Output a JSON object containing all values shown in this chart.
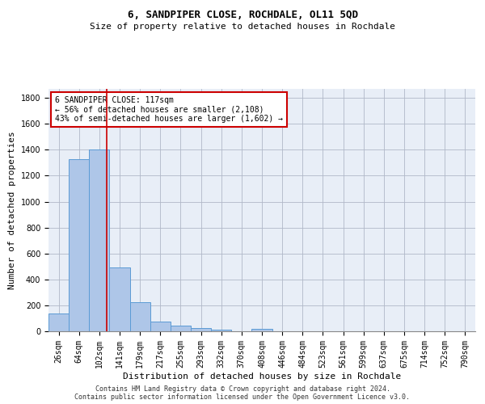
{
  "title": "6, SANDPIPER CLOSE, ROCHDALE, OL11 5QD",
  "subtitle": "Size of property relative to detached houses in Rochdale",
  "xlabel": "Distribution of detached houses by size in Rochdale",
  "ylabel": "Number of detached properties",
  "bar_labels": [
    "26sqm",
    "64sqm",
    "102sqm",
    "141sqm",
    "179sqm",
    "217sqm",
    "255sqm",
    "293sqm",
    "332sqm",
    "370sqm",
    "408sqm",
    "446sqm",
    "484sqm",
    "523sqm",
    "561sqm",
    "599sqm",
    "637sqm",
    "675sqm",
    "714sqm",
    "752sqm",
    "790sqm"
  ],
  "bar_values": [
    135,
    1330,
    1400,
    495,
    225,
    75,
    42,
    27,
    12,
    0,
    18,
    0,
    0,
    0,
    0,
    0,
    0,
    0,
    0,
    0,
    0
  ],
  "bar_color": "#aec6e8",
  "bar_edge_color": "#5b9bd5",
  "property_line_x": 2.38,
  "annotation_text": "6 SANDPIPER CLOSE: 117sqm\n← 56% of detached houses are smaller (2,108)\n43% of semi-detached houses are larger (1,602) →",
  "annotation_box_color": "#ffffff",
  "annotation_box_edge": "#cc0000",
  "vline_color": "#cc0000",
  "ylim": [
    0,
    1870
  ],
  "yticks": [
    0,
    200,
    400,
    600,
    800,
    1000,
    1200,
    1400,
    1600,
    1800
  ],
  "footer1": "Contains HM Land Registry data © Crown copyright and database right 2024.",
  "footer2": "Contains public sector information licensed under the Open Government Licence v3.0.",
  "background_color": "#e8eef7",
  "grid_color": "#b0b8c8",
  "title_fontsize": 9,
  "subtitle_fontsize": 8,
  "axis_label_fontsize": 8,
  "tick_fontsize": 7,
  "annot_fontsize": 7,
  "footer_fontsize": 6
}
